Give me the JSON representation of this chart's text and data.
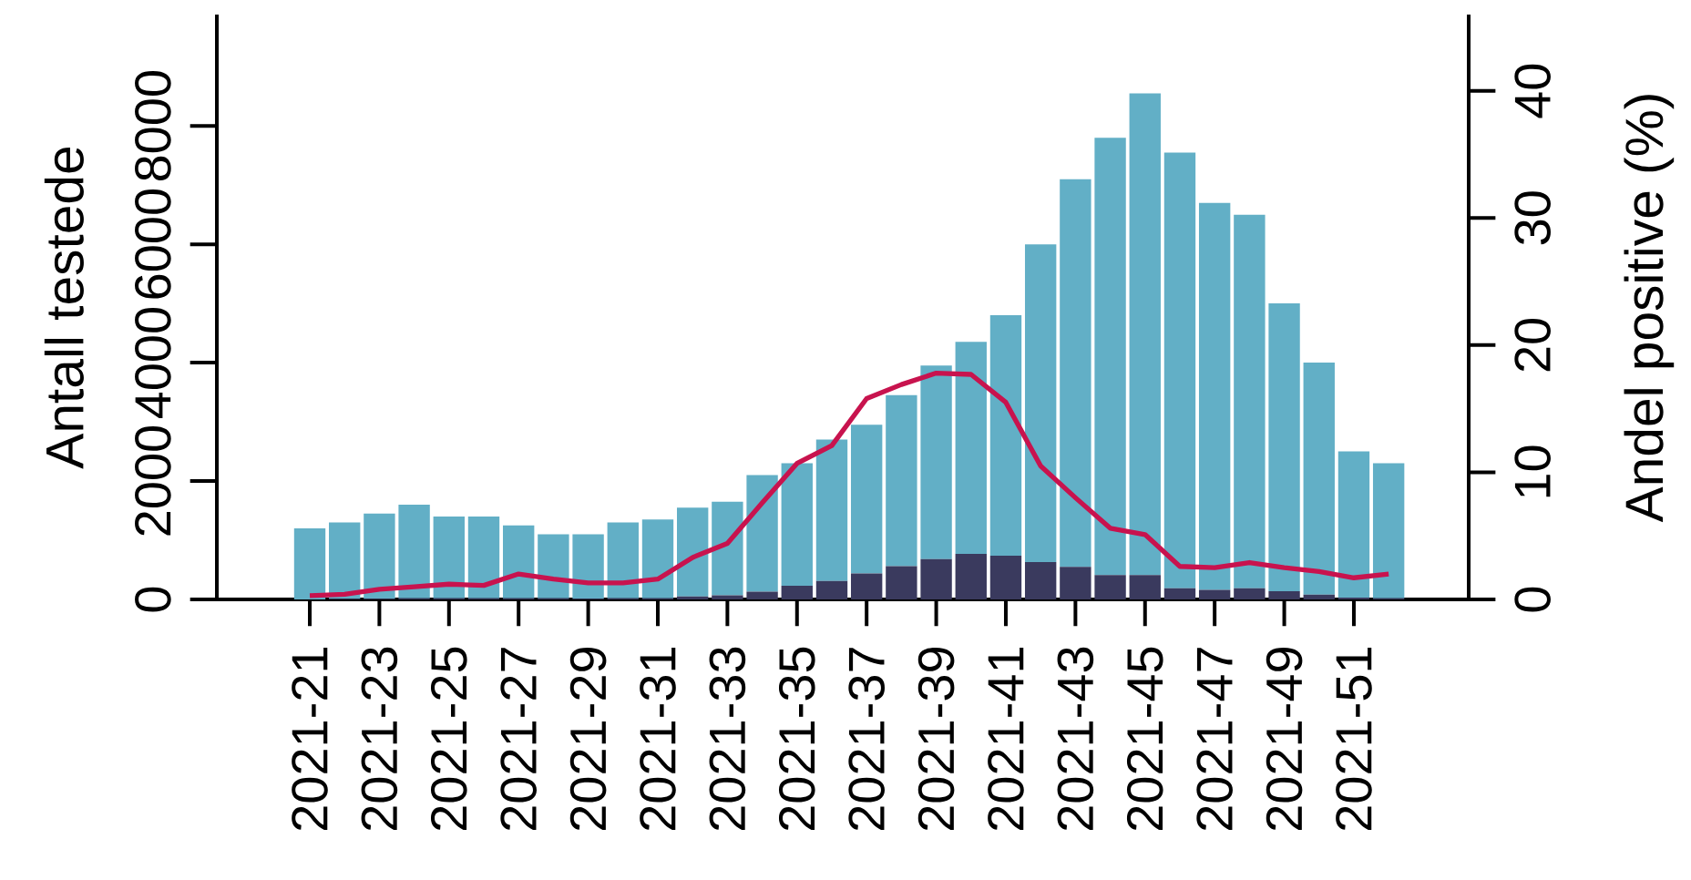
{
  "chart_data": {
    "type": "bar",
    "stacked": true,
    "categories": [
      "2021-21",
      null,
      "2021-23",
      null,
      "2021-25",
      null,
      "2021-27",
      null,
      "2021-29",
      null,
      "2021-31",
      null,
      "2021-33",
      null,
      "2021-35",
      null,
      "2021-37",
      null,
      "2021-39",
      null,
      "2021-41",
      null,
      "2021-43",
      null,
      "2021-45",
      null,
      "2021-47",
      null,
      "2021-49",
      null,
      "2021-51",
      null
    ],
    "series": [
      {
        "color": "#3a3a5e",
        "values": [
          0,
          10,
          10,
          20,
          20,
          20,
          20,
          20,
          10,
          20,
          20,
          50,
          70,
          130,
          230,
          310,
          440,
          560,
          680,
          770,
          740,
          630,
          550,
          410,
          410,
          190,
          160,
          190,
          140,
          80,
          30,
          20
        ]
      },
      {
        "color": "#62afc6",
        "values": [
          1200,
          1290,
          1440,
          1580,
          1380,
          1380,
          1230,
          1080,
          1090,
          1280,
          1330,
          1500,
          1580,
          1970,
          2070,
          2390,
          2510,
          2890,
          3270,
          3580,
          4060,
          5370,
          6550,
          7390,
          8140,
          7360,
          6540,
          6310,
          4860,
          3920,
          2470,
          2280
        ]
      },
      {
        "type": "line",
        "axis": "y2",
        "color": "#c8134e",
        "values": [
          0.3,
          0.4,
          0.8,
          1.0,
          1.2,
          1.1,
          2.0,
          1.6,
          1.3,
          1.3,
          1.6,
          3.3,
          4.4,
          7.6,
          10.7,
          12.1,
          15.8,
          16.9,
          17.8,
          17.7,
          15.5,
          10.5,
          8.0,
          5.6,
          5.1,
          2.6,
          2.5,
          2.9,
          2.5,
          2.2,
          1.7,
          2.0
        ]
      }
    ],
    "ylabel": "Antall testede",
    "y2label": "Andel positive (%)",
    "ylim": [
      0,
      9880
    ],
    "yticks": [
      0,
      2000,
      4000,
      6000,
      8000
    ],
    "y2lim": [
      0,
      46
    ],
    "y2ticks": [
      0,
      10,
      20,
      30,
      40
    ]
  }
}
